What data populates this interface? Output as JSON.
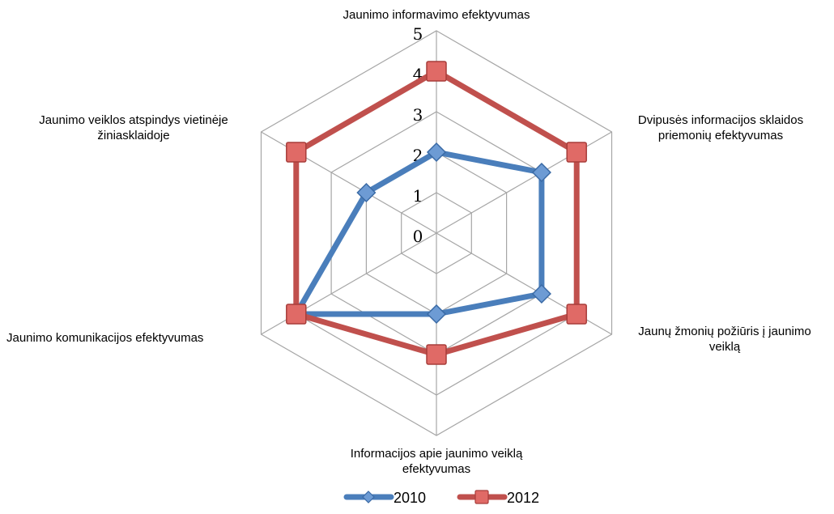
{
  "chart_data": {
    "type": "radar",
    "axes": [
      [
        "Jaunimo informavimo efektyvumas"
      ],
      [
        "Dvipusės informacijos sklaidos",
        "priemonių efektyvumas"
      ],
      [
        "Jaunų žmonių požiūris į jaunimo",
        "veiklą"
      ],
      [
        "Informacijos apie jaunimo veiklą",
        "efektyvumas"
      ],
      [
        "Jaunimo komunikacijos efektyvumas"
      ],
      [
        "Jaunimo veiklos atspindys vietinėje",
        "žiniasklaidoje"
      ]
    ],
    "ticks": [
      "0",
      "1",
      "2",
      "3",
      "4",
      "5"
    ],
    "range": [
      0,
      5
    ],
    "grid": true,
    "legend_position": "bottom",
    "series": [
      {
        "name": "2010",
        "values": [
          2.0,
          3.0,
          3.0,
          2.0,
          4.0,
          2.0
        ],
        "color": "#4a7ebb",
        "marker": "diamond"
      },
      {
        "name": "2012",
        "values": [
          4.0,
          4.0,
          4.0,
          3.0,
          4.0,
          4.0
        ],
        "color": "#c0504d",
        "marker": "square"
      }
    ]
  }
}
